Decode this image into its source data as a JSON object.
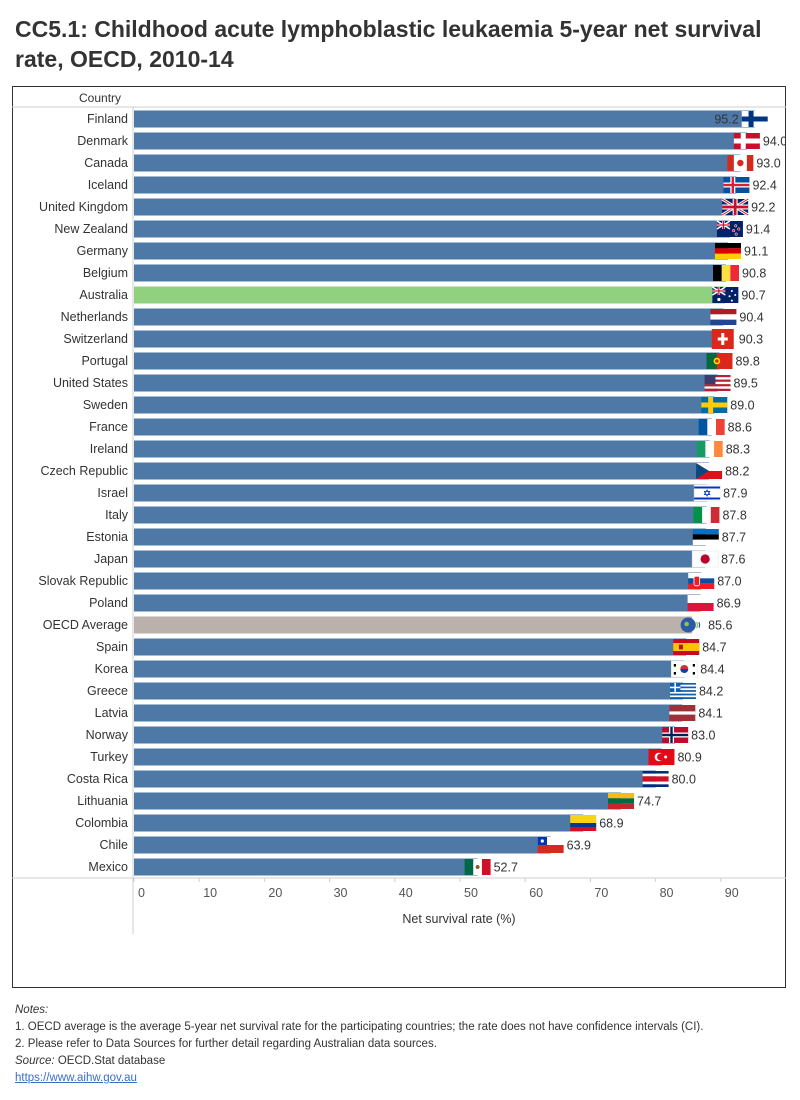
{
  "title": "CC5.1: Childhood acute lymphoblastic leukaemia 5-year net survival rate, OECD, 2010-14",
  "colors": {
    "bar": "#4e79a7",
    "highlight": "#8fd17f",
    "average": "#bab0ac",
    "text": "#333333",
    "grid": "#d9d9d9"
  },
  "chart_data": {
    "type": "bar",
    "orientation": "horizontal",
    "title": "",
    "row_header": "Country",
    "xlabel": "Net survival rate (%)",
    "xlim": [
      0,
      100
    ],
    "xticks": [
      0,
      10,
      20,
      30,
      40,
      50,
      60,
      70,
      80,
      90
    ],
    "grid": false,
    "highlight_category": "Australia",
    "average_category": "OECD Average",
    "categories": [
      "Finland",
      "Denmark",
      "Canada",
      "Iceland",
      "United Kingdom",
      "New Zealand",
      "Germany",
      "Belgium",
      "Australia",
      "Netherlands",
      "Switzerland",
      "Portugal",
      "United States",
      "Sweden",
      "France",
      "Ireland",
      "Czech Republic",
      "Israel",
      "Italy",
      "Estonia",
      "Japan",
      "Slovak Republic",
      "Poland",
      "OECD Average",
      "Spain",
      "Korea",
      "Greece",
      "Latvia",
      "Norway",
      "Turkey",
      "Costa Rica",
      "Lithuania",
      "Colombia",
      "Chile",
      "Mexico"
    ],
    "values": [
      95.2,
      94.0,
      93.0,
      92.4,
      92.2,
      91.4,
      91.1,
      90.8,
      90.7,
      90.4,
      90.3,
      89.8,
      89.5,
      89.0,
      88.6,
      88.3,
      88.2,
      87.9,
      87.8,
      87.7,
      87.6,
      87.0,
      86.9,
      85.6,
      84.7,
      84.4,
      84.2,
      84.1,
      83.0,
      80.9,
      80.0,
      74.7,
      68.9,
      63.9,
      52.7
    ],
    "value_labels": [
      "95.2",
      "94.0",
      "93.0",
      "92.4",
      "92.2",
      "91.4",
      "91.1",
      "90.8",
      "90.7",
      "90.4",
      "90.3",
      "89.8",
      "89.5",
      "89.0",
      "88.6",
      "88.3",
      "88.2",
      "87.9",
      "87.8",
      "87.7",
      "87.6",
      "87.0",
      "86.9",
      "85.6",
      "84.7",
      "84.4",
      "84.2",
      "84.1",
      "83.0",
      "80.9",
      "80.0",
      "74.7",
      "68.9",
      "63.9",
      "52.7"
    ],
    "flag_icons": [
      "finland-flag",
      "denmark-flag",
      "canada-flag",
      "iceland-flag",
      "united-kingdom-flag",
      "new-zealand-flag",
      "germany-flag",
      "belgium-flag",
      "australia-flag",
      "netherlands-flag",
      "switzerland-flag",
      "portugal-flag",
      "united-states-flag",
      "sweden-flag",
      "france-flag",
      "ireland-flag",
      "czech-republic-flag",
      "israel-flag",
      "italy-flag",
      "estonia-flag",
      "japan-flag",
      "slovak-republic-flag",
      "poland-flag",
      "oecd-logo",
      "spain-flag",
      "korea-flag",
      "greece-flag",
      "latvia-flag",
      "norway-flag",
      "turkey-flag",
      "costa-rica-flag",
      "lithuania-flag",
      "colombia-flag",
      "chile-flag",
      "mexico-flag"
    ]
  },
  "notes": {
    "heading": "Notes:",
    "line1": "1. OECD average is the average 5-year net survival rate for the participating countries; the rate does not have confidence intervals (CI).",
    "line2": "2. Please refer to Data Sources for further detail regarding Australian data sources.",
    "source_label": "Source:",
    "source_text": " OECD.Stat database",
    "link": "https://www.aihw.gov.au"
  }
}
